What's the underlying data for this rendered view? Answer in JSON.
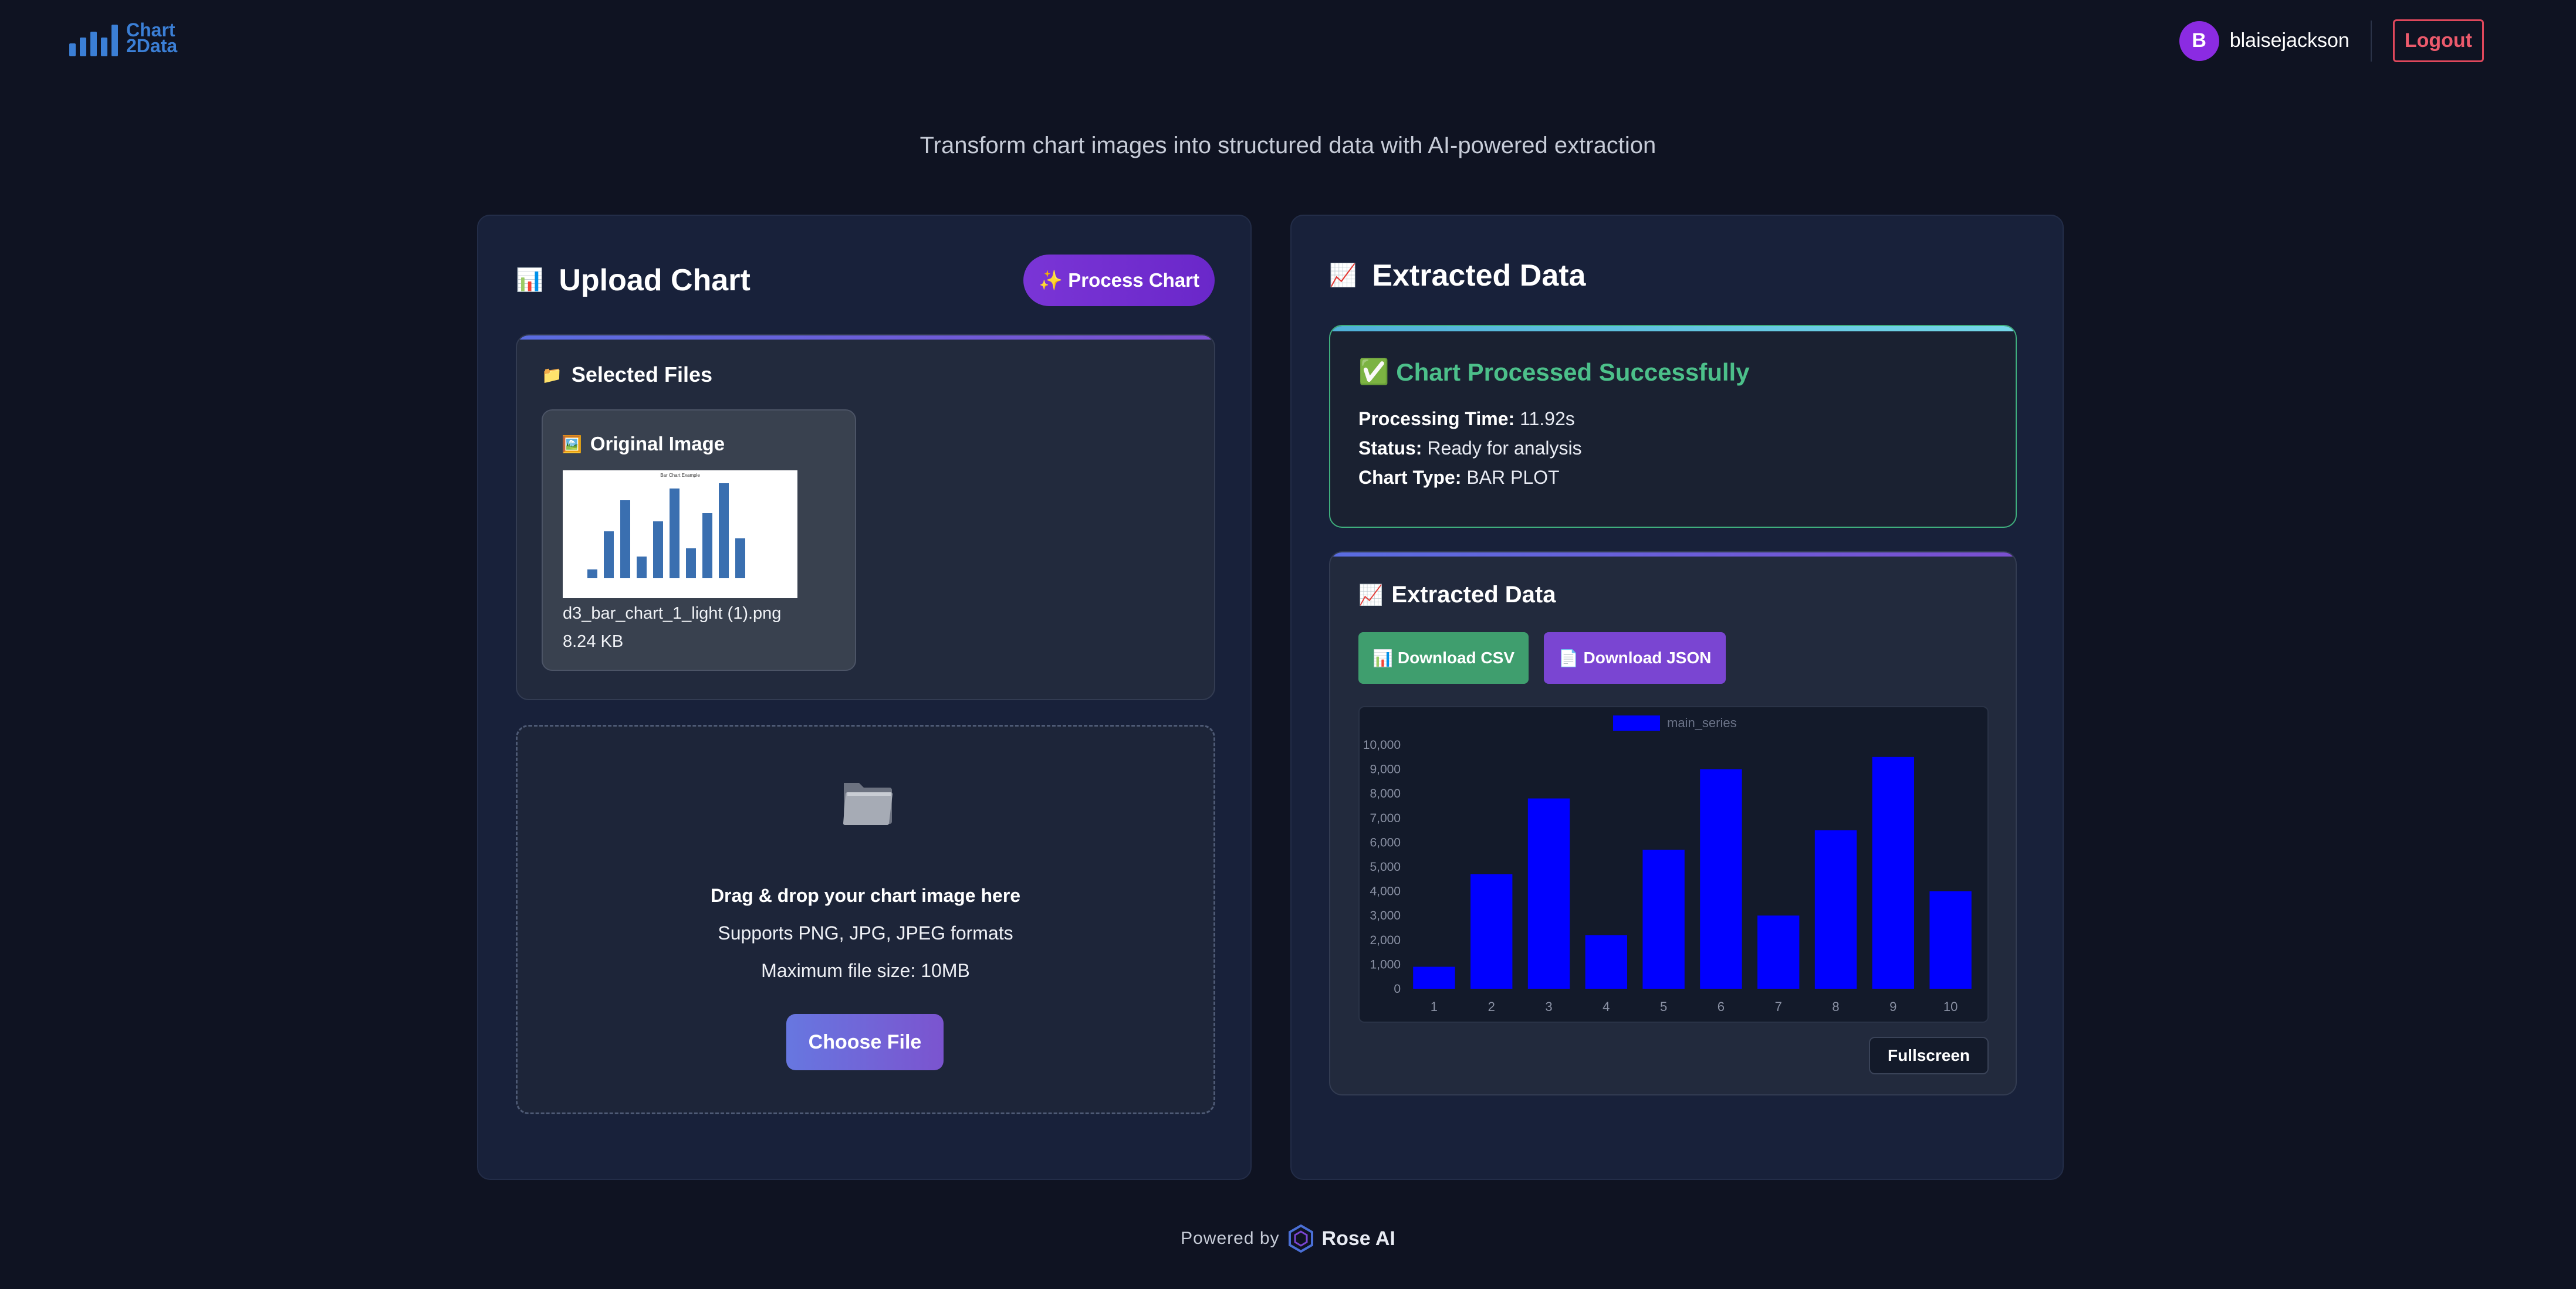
{
  "header": {
    "logo_line1": "Chart",
    "logo_line2": "2Data",
    "avatar_initial": "B",
    "username": "blaisejackson",
    "logout_label": "Logout"
  },
  "tagline": "Transform chart images into structured data with AI-powered extraction",
  "upload": {
    "title": "Upload Chart",
    "process_label": "✨ Process Chart",
    "selected_files_title": "Selected Files",
    "original_image_title": "Original Image",
    "thumbnail_title": "Bar Chart Example",
    "file_name": "d3_bar_chart_1_light (1).png",
    "file_size": "8.24 KB",
    "drop_title": "Drag & drop your chart image here",
    "drop_formats": "Supports PNG, JPG, JPEG formats",
    "drop_maxsize": "Maximum file size: 10MB",
    "choose_label": "Choose File"
  },
  "result": {
    "title": "Extracted Data",
    "status_title": "Chart Processed Successfully",
    "processing_time_label": "Processing Time:",
    "processing_time_value": "11.92s",
    "status_label": "Status:",
    "status_value": "Ready for analysis",
    "chart_type_label": "Chart Type:",
    "chart_type_value": "BAR PLOT",
    "extracted_title": "Extracted Data",
    "download_csv": "Download CSV",
    "download_json": "Download JSON",
    "fullscreen_label": "Fullscreen"
  },
  "footer": {
    "powered_by": "Powered by",
    "brand": "Rose AI"
  },
  "colors": {
    "accent_purple": "#7a35d6",
    "success_green": "#4cc08a",
    "bar_blue": "#0000ff",
    "logout_red": "#e0485c"
  },
  "icons": {
    "upload_title": "bar-chart-icon",
    "extracted_title": "trend-chart-icon",
    "selected_files": "folder-icon",
    "original_image": "picture-icon",
    "status": "check-mark-icon",
    "csv": "bar-chart-icon",
    "json": "document-icon"
  },
  "chart_data": {
    "type": "bar",
    "categories": [
      "1",
      "2",
      "3",
      "4",
      "5",
      "6",
      "7",
      "8",
      "9",
      "10"
    ],
    "series": [
      {
        "name": "main_series",
        "values": [
          900,
          4700,
          7800,
          2200,
          5700,
          9000,
          3000,
          6500,
          9500,
          4000
        ]
      }
    ],
    "ylim": [
      0,
      10000
    ],
    "yticks": [
      "0",
      "1,000",
      "2,000",
      "3,000",
      "4,000",
      "5,000",
      "6,000",
      "7,000",
      "8,000",
      "9,000",
      "10,000"
    ],
    "legend": "top-center",
    "grid": false
  }
}
